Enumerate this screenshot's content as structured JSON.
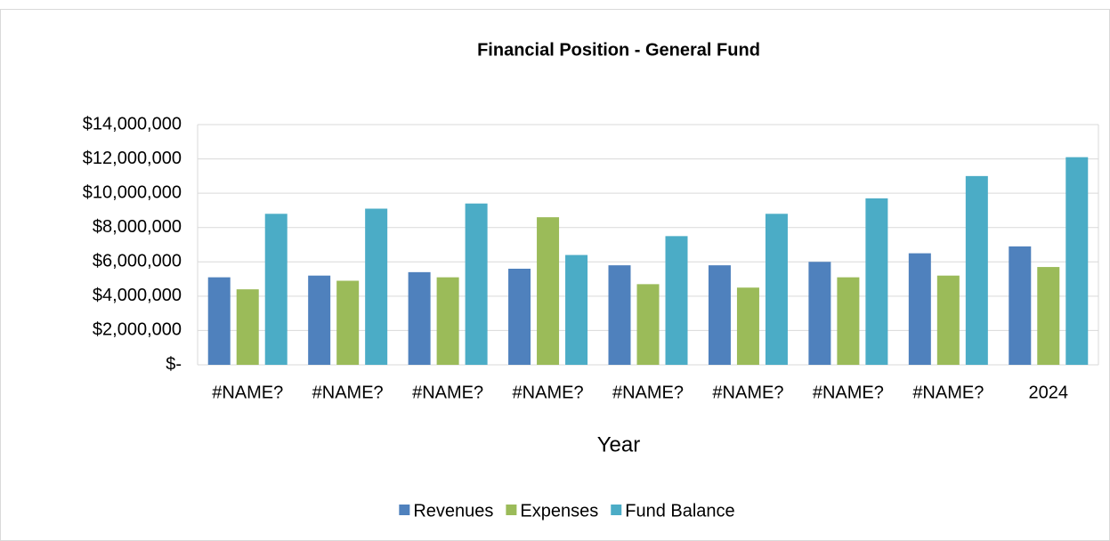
{
  "chart_data": {
    "type": "bar",
    "title": "Financial Position - General Fund",
    "x_label": "Year",
    "categories": [
      "#NAME?",
      "#NAME?",
      "#NAME?",
      "#NAME?",
      "#NAME?",
      "#NAME?",
      "#NAME?",
      "#NAME?",
      "2024"
    ],
    "series": [
      {
        "name": "Revenues",
        "color": "#4f81bd",
        "values": [
          5100000,
          5200000,
          5400000,
          5600000,
          5800000,
          5800000,
          6000000,
          6500000,
          6900000
        ]
      },
      {
        "name": "Expenses",
        "color": "#9bbb59",
        "values": [
          4400000,
          4900000,
          5100000,
          8600000,
          4700000,
          4500000,
          5100000,
          5200000,
          5700000
        ]
      },
      {
        "name": "Fund Balance",
        "color": "#4bacc6",
        "values": [
          8800000,
          9100000,
          9400000,
          6400000,
          7500000,
          8800000,
          9700000,
          11000000,
          12100000
        ]
      }
    ],
    "ylim": [
      0,
      14000000
    ],
    "yticks": [
      {
        "value": 0,
        "label": "$-"
      },
      {
        "value": 2000000,
        "label": "$2,000,000"
      },
      {
        "value": 4000000,
        "label": "$4,000,000"
      },
      {
        "value": 6000000,
        "label": "$6,000,000"
      },
      {
        "value": 8000000,
        "label": "$8,000,000"
      },
      {
        "value": 10000000,
        "label": "$10,000,000"
      },
      {
        "value": 12000000,
        "label": "$12,000,000"
      },
      {
        "value": 14000000,
        "label": "$14,000,000"
      }
    ],
    "grid": true,
    "legend": "bottom"
  }
}
